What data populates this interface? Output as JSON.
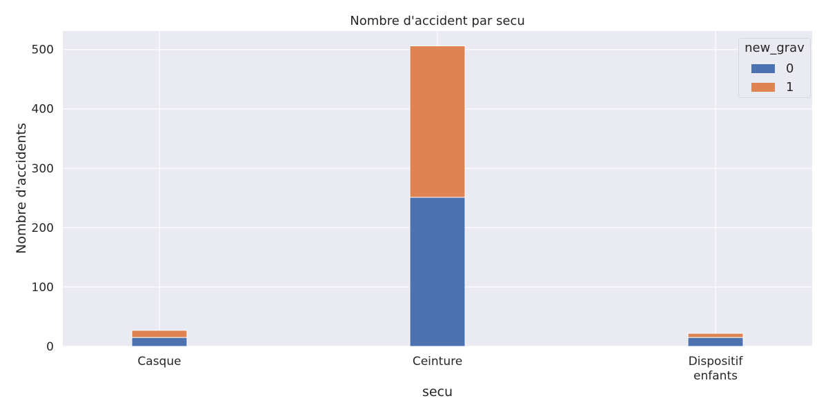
{
  "chart_data": {
    "type": "bar",
    "stacked": true,
    "title": "Nombre d'accident par secu",
    "xlabel": "secu",
    "ylabel": "Nombre d'accidents",
    "categories": [
      [
        "Casque"
      ],
      [
        "Ceinture"
      ],
      [
        "Dispositif",
        "enfants"
      ]
    ],
    "series": [
      {
        "name": "0",
        "values": [
          15,
          251,
          15
        ],
        "color": "#4c72b0"
      },
      {
        "name": "1",
        "values": [
          12,
          255,
          7
        ],
        "color": "#dd8452"
      }
    ],
    "yticks": [
      "0",
      "100",
      "200",
      "300",
      "400",
      "500"
    ],
    "ylim": [
      0,
      531
    ],
    "grid": true,
    "legend": {
      "title": "new_grav",
      "placement": "top-right"
    }
  }
}
